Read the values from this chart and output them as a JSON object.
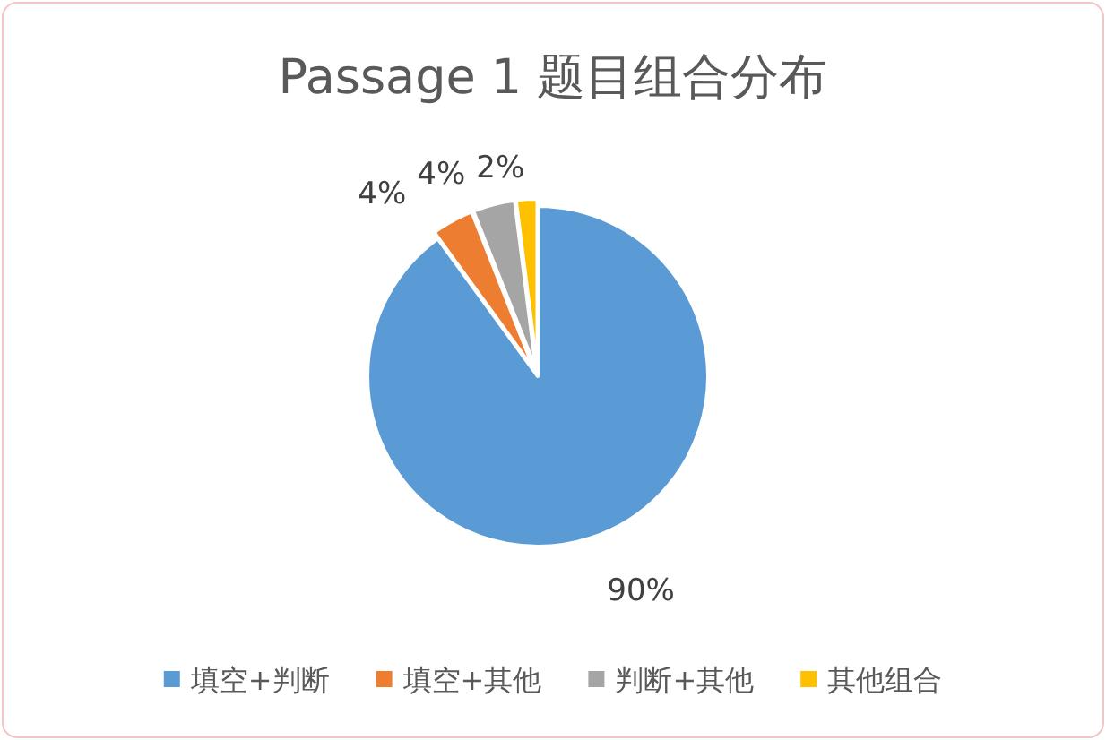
{
  "chart_data": {
    "type": "pie",
    "title": "Passage 1 题目组合分布",
    "categories": [
      "填空+判断",
      "填空+其他",
      "判断+其他",
      "其他组合"
    ],
    "values": [
      90,
      4,
      4,
      2
    ],
    "colors": [
      "#5b9bd5",
      "#ed7d31",
      "#a5a5a5",
      "#ffc000"
    ],
    "value_labels": [
      "90%",
      "4%",
      "4%",
      "2%"
    ],
    "legend": "bottom"
  }
}
